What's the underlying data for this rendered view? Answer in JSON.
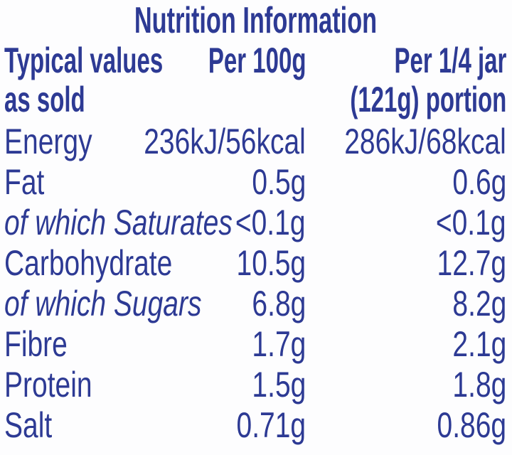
{
  "title": "Nutrition Information",
  "colors": {
    "text": "#2d3a94",
    "background": "#fdfdfe"
  },
  "table": {
    "header": {
      "label_col_line1": "Typical values",
      "label_col_line2": "as sold",
      "per_100g_col": "Per 100g",
      "per_portion_col_line1": "Per 1/4 jar",
      "per_portion_col_line2": "(121g) portion"
    },
    "rows": [
      {
        "label": "Energy",
        "per_100g": "236kJ/56kcal",
        "per_portion": "286kJ/68kcal",
        "italic": false
      },
      {
        "label": "Fat",
        "per_100g": "0.5g",
        "per_portion": "0.6g",
        "italic": false
      },
      {
        "label": "of which Saturates",
        "per_100g": "<0.1g",
        "per_portion": "<0.1g",
        "italic": true
      },
      {
        "label": "Carbohydrate",
        "per_100g": "10.5g",
        "per_portion": "12.7g",
        "italic": false
      },
      {
        "label": "of which Sugars",
        "per_100g": "6.8g",
        "per_portion": "8.2g",
        "italic": true
      },
      {
        "label": "Fibre",
        "per_100g": "1.7g",
        "per_portion": "2.1g",
        "italic": false
      },
      {
        "label": "Protein",
        "per_100g": "1.5g",
        "per_portion": "1.8g",
        "italic": false
      },
      {
        "label": "Salt",
        "per_100g": "0.71g",
        "per_portion": "0.86g",
        "italic": false
      }
    ]
  }
}
